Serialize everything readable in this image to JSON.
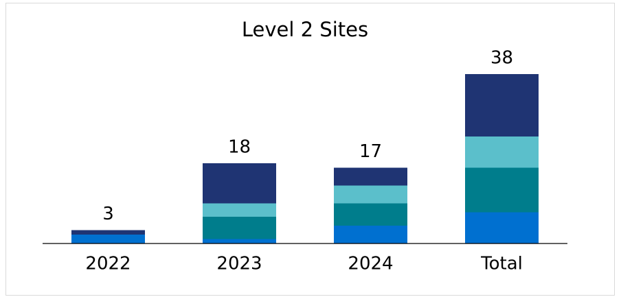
{
  "chart_data": {
    "type": "stacked-bar",
    "title": "Level 2 Sites",
    "categories": [
      "2022",
      "2023",
      "2024",
      "Total"
    ],
    "totals": [
      3,
      18,
      17,
      38
    ],
    "series": [
      {
        "color": "#0070d0",
        "values": [
          2,
          1,
          4,
          7
        ]
      },
      {
        "color": "#007d8c",
        "values": [
          0,
          5,
          5,
          10
        ]
      },
      {
        "color": "#5bbfcb",
        "values": [
          0,
          3,
          4,
          7
        ]
      },
      {
        "color": "#1f3473",
        "values": [
          1,
          9,
          4,
          14
        ]
      }
    ]
  }
}
